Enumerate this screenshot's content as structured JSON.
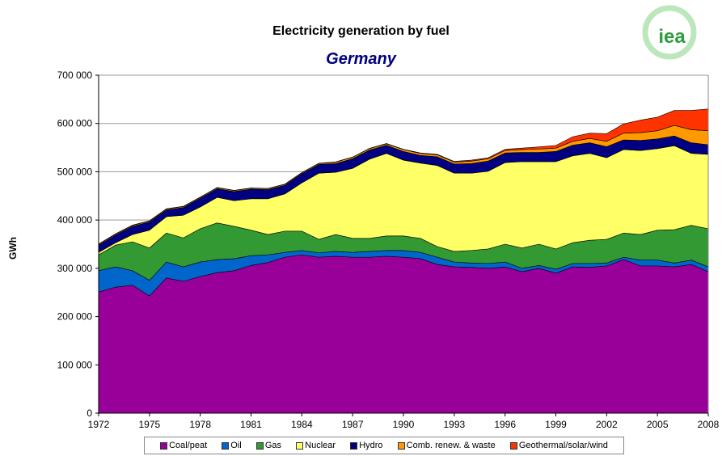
{
  "chart_data": {
    "type": "area",
    "stacked": true,
    "title": "Electricity generation by fuel",
    "subtitle": "Germany",
    "xlabel": "",
    "ylabel": "GWh",
    "ylim": [
      0,
      700000
    ],
    "yticks": [
      "0",
      "100 000",
      "200 000",
      "300 000",
      "400 000",
      "500 000",
      "600 000",
      "700 000"
    ],
    "xticks": [
      "1972",
      "1975",
      "1978",
      "1981",
      "1984",
      "1987",
      "1990",
      "1993",
      "1996",
      "1999",
      "2002",
      "2005",
      "2008"
    ],
    "grid": "horizontal",
    "legend_position": "bottom",
    "x": [
      1972,
      1973,
      1974,
      1975,
      1976,
      1977,
      1978,
      1979,
      1980,
      1981,
      1982,
      1983,
      1984,
      1985,
      1986,
      1987,
      1988,
      1989,
      1990,
      1991,
      1992,
      1993,
      1994,
      1995,
      1996,
      1997,
      1998,
      1999,
      2000,
      2001,
      2002,
      2003,
      2004,
      2005,
      2006,
      2007,
      2008
    ],
    "series": [
      {
        "name": "Coal/peat",
        "color": "#990099",
        "values": [
          251000,
          261000,
          265000,
          243000,
          280000,
          273000,
          283000,
          291000,
          295000,
          306000,
          312000,
          323000,
          328000,
          323000,
          325000,
          323000,
          323000,
          325000,
          323000,
          320000,
          308000,
          303000,
          302000,
          300000,
          303000,
          293000,
          300000,
          290000,
          303000,
          302000,
          305000,
          318000,
          305000,
          305000,
          303000,
          308000,
          293000
        ]
      },
      {
        "name": "Oil",
        "color": "#0066CC",
        "values": [
          44000,
          42000,
          30000,
          32000,
          33000,
          30000,
          30000,
          27000,
          25000,
          20000,
          16000,
          10000,
          9000,
          9000,
          10000,
          10000,
          12000,
          12000,
          14000,
          13000,
          15000,
          10000,
          9000,
          10000,
          10000,
          7000,
          6000,
          8000,
          7000,
          8000,
          6000,
          5000,
          12000,
          12000,
          8000,
          9000,
          10000
        ]
      },
      {
        "name": "Gas",
        "color": "#339933",
        "values": [
          33000,
          45000,
          60000,
          67000,
          60000,
          60000,
          69000,
          76000,
          67000,
          53000,
          42000,
          44000,
          40000,
          28000,
          35000,
          29000,
          27000,
          30000,
          30000,
          29000,
          22000,
          22000,
          26000,
          30000,
          37000,
          42000,
          44000,
          42000,
          43000,
          48000,
          49000,
          50000,
          53000,
          62000,
          69000,
          72000,
          79000
        ]
      },
      {
        "name": "Nuclear",
        "color": "#FFFF66",
        "values": [
          5000,
          5000,
          15000,
          37000,
          34000,
          47000,
          45000,
          53000,
          53000,
          65000,
          74000,
          77000,
          100000,
          137000,
          129000,
          145000,
          164000,
          171000,
          157000,
          156000,
          168000,
          162000,
          160000,
          161000,
          169000,
          179000,
          171000,
          181000,
          180000,
          180000,
          169000,
          173000,
          174000,
          169000,
          174000,
          149000,
          154000
        ]
      },
      {
        "name": "Hydro",
        "color": "#000080",
        "values": [
          15000,
          16000,
          17000,
          17000,
          14000,
          16000,
          18000,
          18000,
          19000,
          20000,
          19000,
          18000,
          19000,
          18000,
          18000,
          20000,
          19000,
          17000,
          18000,
          16000,
          18000,
          19000,
          20000,
          21000,
          20000,
          19000,
          19000,
          21000,
          22000,
          22000,
          23000,
          20000,
          21000,
          20000,
          20000,
          22000,
          20000
        ]
      },
      {
        "name": "Comb. renew. & waste",
        "color": "#FF9900",
        "values": [
          2000,
          2000,
          2000,
          2000,
          2000,
          2000,
          2000,
          2000,
          2000,
          2000,
          2000,
          2000,
          2000,
          2000,
          3000,
          3000,
          3000,
          3000,
          4000,
          4000,
          4000,
          4000,
          5000,
          5000,
          5000,
          6000,
          7000,
          7000,
          8000,
          9000,
          11000,
          14000,
          16000,
          17000,
          22000,
          27000,
          29000
        ]
      },
      {
        "name": "Geothermal/solar/wind",
        "color": "#FF3300",
        "values": [
          500,
          500,
          500,
          500,
          500,
          500,
          500,
          500,
          500,
          500,
          500,
          500,
          500,
          500,
          500,
          500,
          500,
          500,
          500,
          1000,
          1000,
          1500,
          2000,
          2000,
          2500,
          3000,
          4500,
          5500,
          9500,
          11000,
          16000,
          19000,
          26000,
          28000,
          31000,
          40000,
          45000
        ]
      }
    ]
  },
  "logo": {
    "text": "iea"
  }
}
